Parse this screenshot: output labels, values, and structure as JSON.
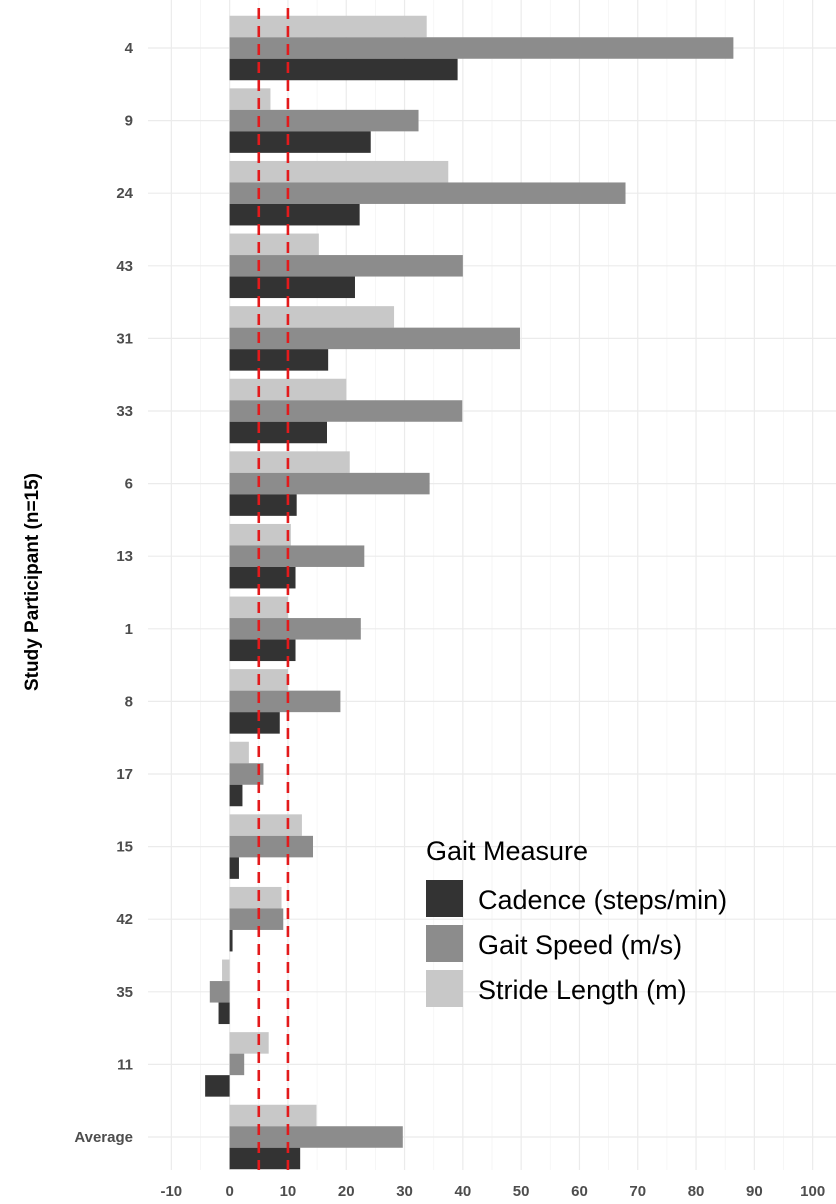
{
  "chart_data": {
    "type": "bar",
    "orientation": "horizontal",
    "xlabel": "",
    "ylabel": "Study Participant (n=15)",
    "xlim": [
      -14,
      104
    ],
    "x_ticks": [
      "-10",
      "0",
      "10",
      "20",
      "30",
      "40",
      "50",
      "60",
      "70",
      "80",
      "90",
      "100"
    ],
    "x_tick_values": [
      -10,
      0,
      10,
      20,
      30,
      40,
      50,
      60,
      70,
      80,
      90,
      100
    ],
    "grid": true,
    "reference_lines": [
      5,
      10
    ],
    "reference_line_color": "#e31a1c",
    "categories": [
      "4",
      "9",
      "24",
      "43",
      "31",
      "33",
      "6",
      "13",
      "1",
      "8",
      "17",
      "15",
      "42",
      "35",
      "11",
      "Average"
    ],
    "legend": {
      "title": "Gait Measure",
      "position": "right"
    },
    "series": [
      {
        "name": "Stride Length (m)",
        "color": "#c8c8c8",
        "values": [
          33.8,
          7.0,
          37.5,
          15.3,
          28.2,
          20.0,
          20.6,
          10.5,
          10.0,
          10.0,
          3.3,
          12.4,
          8.9,
          -1.3,
          6.7,
          14.9
        ]
      },
      {
        "name": "Gait Speed (m/s)",
        "color": "#8c8c8c",
        "values": [
          86.4,
          32.4,
          67.9,
          40.0,
          49.8,
          39.9,
          34.3,
          23.1,
          22.5,
          19.0,
          5.8,
          14.3,
          9.2,
          -3.4,
          2.5,
          29.7
        ]
      },
      {
        "name": "Cadence (steps/min)",
        "color": "#333333",
        "values": [
          39.1,
          24.2,
          22.3,
          21.5,
          16.9,
          16.7,
          11.5,
          11.3,
          11.3,
          8.6,
          2.2,
          1.6,
          0.5,
          -1.9,
          -4.2,
          12.1
        ]
      }
    ],
    "legend_order": [
      "Cadence (steps/min)",
      "Gait Speed (m/s)",
      "Stride Length (m)"
    ]
  }
}
